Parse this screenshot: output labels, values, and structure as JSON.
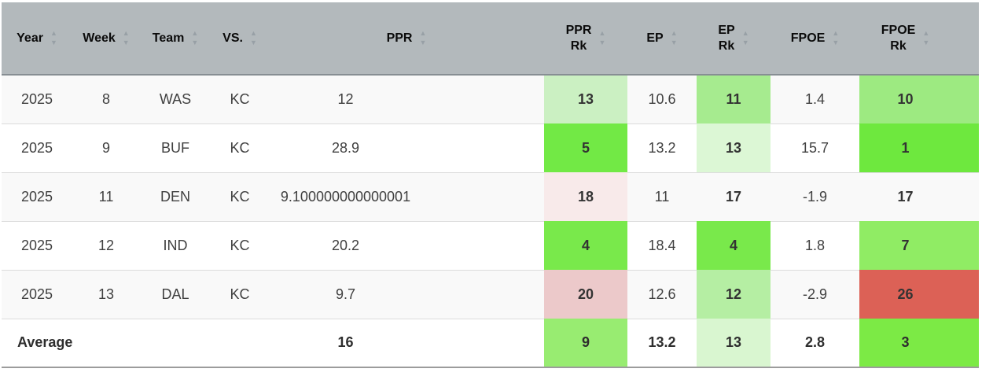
{
  "table": {
    "columns": [
      {
        "key": "year",
        "label": "Year",
        "rank": false
      },
      {
        "key": "week",
        "label": "Week",
        "rank": false
      },
      {
        "key": "team",
        "label": "Team",
        "rank": false
      },
      {
        "key": "vs",
        "label": "VS.",
        "rank": false
      },
      {
        "key": "ppr",
        "label": "PPR",
        "rank": false
      },
      {
        "key": "ppr_rk",
        "label": "PPR\nRk",
        "rank": true
      },
      {
        "key": "ep",
        "label": "EP",
        "rank": false
      },
      {
        "key": "ep_rk",
        "label": "EP\nRk",
        "rank": true
      },
      {
        "key": "fpoe",
        "label": "FPOE",
        "rank": false
      },
      {
        "key": "fpoe_rk",
        "label": "FPOE\nRk",
        "rank": true
      }
    ],
    "rows": [
      {
        "year": "2025",
        "week": "8",
        "team": "WAS",
        "vs": "KC",
        "ppr": "12",
        "ppr_rk": "13",
        "ep": "10.6",
        "ep_rk": "11",
        "fpoe": "1.4",
        "fpoe_rk": "10",
        "colors": {
          "ppr_rk": "#cbf0c2",
          "ep_rk": "#a6eb8f",
          "fpoe_rk": "#9dea81"
        }
      },
      {
        "year": "2025",
        "week": "9",
        "team": "BUF",
        "vs": "KC",
        "ppr": "28.9",
        "ppr_rk": "5",
        "ep": "13.2",
        "ep_rk": "13",
        "fpoe": "15.7",
        "fpoe_rk": "1",
        "colors": {
          "ppr_rk": "#72e945",
          "ep_rk": "#dcf7d5",
          "fpoe_rk": "#6ee83e"
        }
      },
      {
        "year": "2025",
        "week": "11",
        "team": "DEN",
        "vs": "KC",
        "ppr": "9.100000000000001",
        "ppr_rk": "18",
        "ep": "11",
        "ep_rk": "17",
        "fpoe": "-1.9",
        "fpoe_rk": "17",
        "colors": {
          "ppr_rk": "#f8eaea"
        }
      },
      {
        "year": "2025",
        "week": "12",
        "team": "IND",
        "vs": "KC",
        "ppr": "20.2",
        "ppr_rk": "4",
        "ep": "18.4",
        "ep_rk": "4",
        "fpoe": "1.8",
        "fpoe_rk": "7",
        "colors": {
          "ppr_rk": "#79e94b",
          "ep_rk": "#79e94b",
          "fpoe_rk": "#90ec64"
        }
      },
      {
        "year": "2025",
        "week": "13",
        "team": "DAL",
        "vs": "KC",
        "ppr": "9.7",
        "ppr_rk": "20",
        "ep": "12.6",
        "ep_rk": "12",
        "fpoe": "-2.9",
        "fpoe_rk": "26",
        "colors": {
          "ppr_rk": "#ecc9ca",
          "ep_rk": "#b5eea3",
          "fpoe_rk": "#dc6156"
        }
      }
    ],
    "average": {
      "label": "Average",
      "ppr": "16",
      "ppr_rk": "9",
      "ep": "13.2",
      "ep_rk": "13",
      "fpoe": "2.8",
      "fpoe_rk": "3",
      "colors": {
        "ppr_rk": "#98ec71",
        "ep_rk": "#d9f6d0",
        "fpoe_rk": "#7cea45"
      }
    }
  },
  "icons": {
    "sort_asc": "▲",
    "sort_desc": "▼"
  },
  "theme": {
    "header_bg": "#b3b9bc",
    "header_border": "#878e93",
    "row_alt_bg": "#f9f9f9",
    "row_border": "#dcdcdc",
    "table_bottom_border": "#9c9c9c",
    "sort_arrow": "#98a0a6",
    "rank_text": "#333333"
  }
}
